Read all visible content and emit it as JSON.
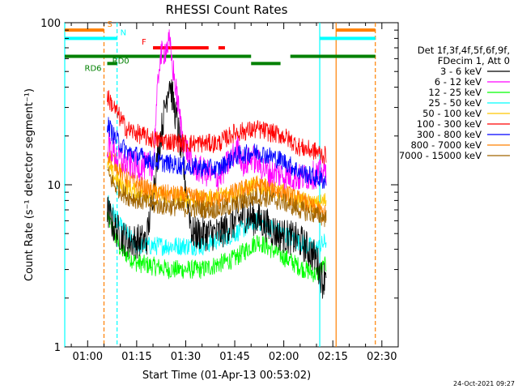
{
  "chart_data": {
    "type": "line",
    "title": "RHESSI Count Rates",
    "xlabel": "Start Time (01-Apr-13 00:53:02)",
    "ylabel": "Count Rate (s⁻¹ detector segment⁻¹)",
    "yscale": "log",
    "ylim": [
      1,
      100
    ],
    "xlim_minutes_after_0053": [
      0,
      102
    ],
    "x_ticks": [
      "01:00",
      "01:15",
      "01:30",
      "01:45",
      "02:00",
      "02:15",
      "02:30"
    ],
    "y_ticks": [
      "1",
      "10",
      "100"
    ],
    "grid": false,
    "legend_position": "right",
    "legend_header": [
      "Det 1f,3f,4f,5f,6f,9f,",
      "FDecim 1, Att 0"
    ],
    "series": [
      {
        "name": "3 - 6 keV",
        "color": "#000000",
        "x": [
          "01:06",
          "01:08",
          "01:12",
          "01:18",
          "01:22",
          "01:25",
          "01:28",
          "01:32",
          "01:40",
          "01:48",
          "01:53",
          "01:58",
          "02:05",
          "02:10",
          "02:12",
          "02:13"
        ],
        "values": [
          7,
          5.5,
          4.5,
          4.5,
          18,
          45,
          20,
          5,
          5,
          6.5,
          6,
          5,
          4.5,
          3.5,
          2.5,
          3.2
        ]
      },
      {
        "name": "6 - 12 keV",
        "color": "#ff00ff",
        "x": [
          "01:06",
          "01:10",
          "01:15",
          "01:20",
          "01:22",
          "01:25",
          "01:29",
          "01:32",
          "01:40",
          "01:46",
          "01:48",
          "01:50",
          "01:55",
          "02:05",
          "02:13"
        ],
        "values": [
          18,
          14,
          13,
          13,
          60,
          75,
          20,
          13,
          11,
          17,
          13,
          15,
          12,
          11,
          12
        ]
      },
      {
        "name": "12 - 25 keV",
        "color": "#00ff00",
        "x": [
          "01:06",
          "01:10",
          "01:15",
          "01:25",
          "01:35",
          "01:45",
          "01:52",
          "01:58",
          "02:05",
          "02:10",
          "02:13"
        ],
        "values": [
          6.5,
          4,
          3.3,
          3.0,
          3.0,
          3.5,
          4.5,
          3.8,
          3.1,
          2.8,
          3.2
        ]
      },
      {
        "name": "25 - 50 keV",
        "color": "#00ffff",
        "x": [
          "01:06",
          "01:10",
          "01:15",
          "01:25",
          "01:35",
          "01:45",
          "01:52",
          "01:58",
          "02:05",
          "02:10",
          "02:13"
        ],
        "values": [
          8,
          5.5,
          4.2,
          4.2,
          4.2,
          5.0,
          6.0,
          5.2,
          4.4,
          4.0,
          4.5
        ]
      },
      {
        "name": "50 - 100 keV",
        "color": "#ffc800",
        "x": [
          "01:06",
          "01:10",
          "01:15",
          "01:25",
          "01:35",
          "01:45",
          "01:52",
          "01:58",
          "02:05",
          "02:10",
          "02:13"
        ],
        "values": [
          13,
          10,
          9,
          8.5,
          8,
          9,
          10,
          9,
          8,
          7.5,
          8
        ]
      },
      {
        "name": "100 - 300 keV",
        "color": "#ff0000",
        "x": [
          "01:06",
          "01:08",
          "01:12",
          "01:20",
          "01:30",
          "01:40",
          "01:45",
          "01:52",
          "02:00",
          "02:05",
          "02:10",
          "02:13"
        ],
        "values": [
          35,
          30,
          22,
          19,
          18,
          18,
          21,
          22,
          20,
          17,
          16,
          15
        ]
      },
      {
        "name": "300 - 800 keV",
        "color": "#0000ff",
        "x": [
          "01:06",
          "01:08",
          "01:12",
          "01:20",
          "01:30",
          "01:40",
          "01:45",
          "01:52",
          "02:00",
          "02:05",
          "02:10",
          "02:13"
        ],
        "values": [
          24,
          20,
          16,
          14,
          13,
          12.5,
          15,
          16,
          14,
          12,
          11,
          10.5
        ]
      },
      {
        "name": "800 - 7000 keV",
        "color": "#ff8000",
        "x": [
          "01:06",
          "01:08",
          "01:12",
          "01:20",
          "01:30",
          "01:40",
          "01:45",
          "01:52",
          "02:00",
          "02:05",
          "02:10",
          "02:13"
        ],
        "values": [
          16,
          14,
          11,
          9,
          8.5,
          8.0,
          9.0,
          10,
          9,
          8,
          7,
          6.5
        ]
      },
      {
        "name": "7000 - 15000 keV",
        "color": "#a06400",
        "x": [
          "01:06",
          "01:08",
          "01:12",
          "01:20",
          "01:30",
          "01:40",
          "01:45",
          "01:52",
          "02:00",
          "02:05",
          "02:10",
          "02:13"
        ],
        "values": [
          12,
          10,
          8.5,
          7.5,
          7.2,
          7.0,
          7.5,
          8.5,
          7.8,
          7.0,
          6.5,
          6.2
        ]
      }
    ],
    "flags": [
      {
        "label": "S",
        "color": "#ff8000",
        "level": 90,
        "segments": [
          [
            "00:53",
            "01:05"
          ],
          [
            "02:16",
            "02:28"
          ]
        ]
      },
      {
        "label": "N",
        "color": "#00ffff",
        "level": 80,
        "segments": [
          [
            "00:53",
            "01:09"
          ],
          [
            "02:11",
            "02:28"
          ]
        ]
      },
      {
        "label": "F",
        "color": "#ff0000",
        "level": 70,
        "segments": [
          [
            "01:20",
            "01:37"
          ],
          [
            "01:40",
            "01:42"
          ]
        ]
      },
      {
        "label": "RD0",
        "color": "#008000",
        "level": 62,
        "segments": [
          [
            "00:53",
            "01:50"
          ],
          [
            "02:02",
            "02:28"
          ]
        ]
      },
      {
        "label": "RD6",
        "color": "#008000",
        "level": 56,
        "segments": [
          [
            "01:06",
            "01:09"
          ],
          [
            "01:50",
            "01:59"
          ]
        ]
      }
    ],
    "vertical_markers": [
      {
        "time": "00:53",
        "color": "#00ffff",
        "style": "solid"
      },
      {
        "time": "01:05",
        "color": "#ff8000",
        "style": "dashed"
      },
      {
        "time": "01:09",
        "color": "#00ffff",
        "style": "dashed"
      },
      {
        "time": "02:11",
        "color": "#00ffff",
        "style": "solid"
      },
      {
        "time": "02:16",
        "color": "#ff8000",
        "style": "solid"
      },
      {
        "time": "02:28",
        "color": "#ff8000",
        "style": "dashed"
      }
    ]
  },
  "timestamp": "24-Oct-2021 09:27"
}
